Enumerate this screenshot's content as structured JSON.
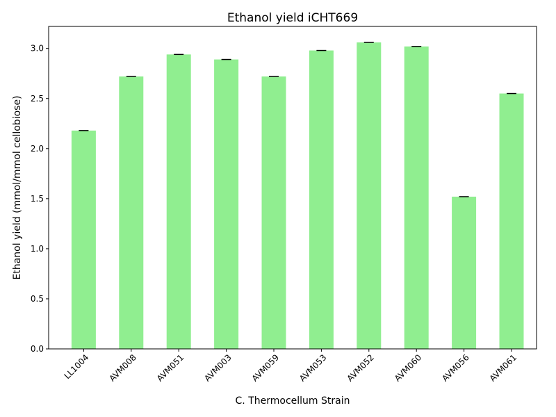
{
  "chart_data": {
    "type": "bar",
    "title": "Ethanol yield iCHT669",
    "xlabel": "C. Thermocellum Strain",
    "ylabel": "Ethanol yield (mmol/mmol cellobiose)",
    "categories": [
      "LL1004",
      "AVM008",
      "AVM051",
      "AVM003",
      "AVM059",
      "AVM053",
      "AVM052",
      "AVM060",
      "AVM056",
      "AVM061"
    ],
    "values": [
      2.18,
      2.72,
      2.94,
      2.89,
      2.72,
      2.98,
      3.06,
      3.02,
      1.52,
      2.55
    ],
    "ylim": [
      0,
      3.22
    ],
    "yticks": [
      "0.0",
      "0.5",
      "1.0",
      "1.5",
      "2.0",
      "2.5",
      "3.0"
    ],
    "bar_color": "#90ee90",
    "errorbar_color": "#000000",
    "grid": false,
    "legend": "none"
  }
}
